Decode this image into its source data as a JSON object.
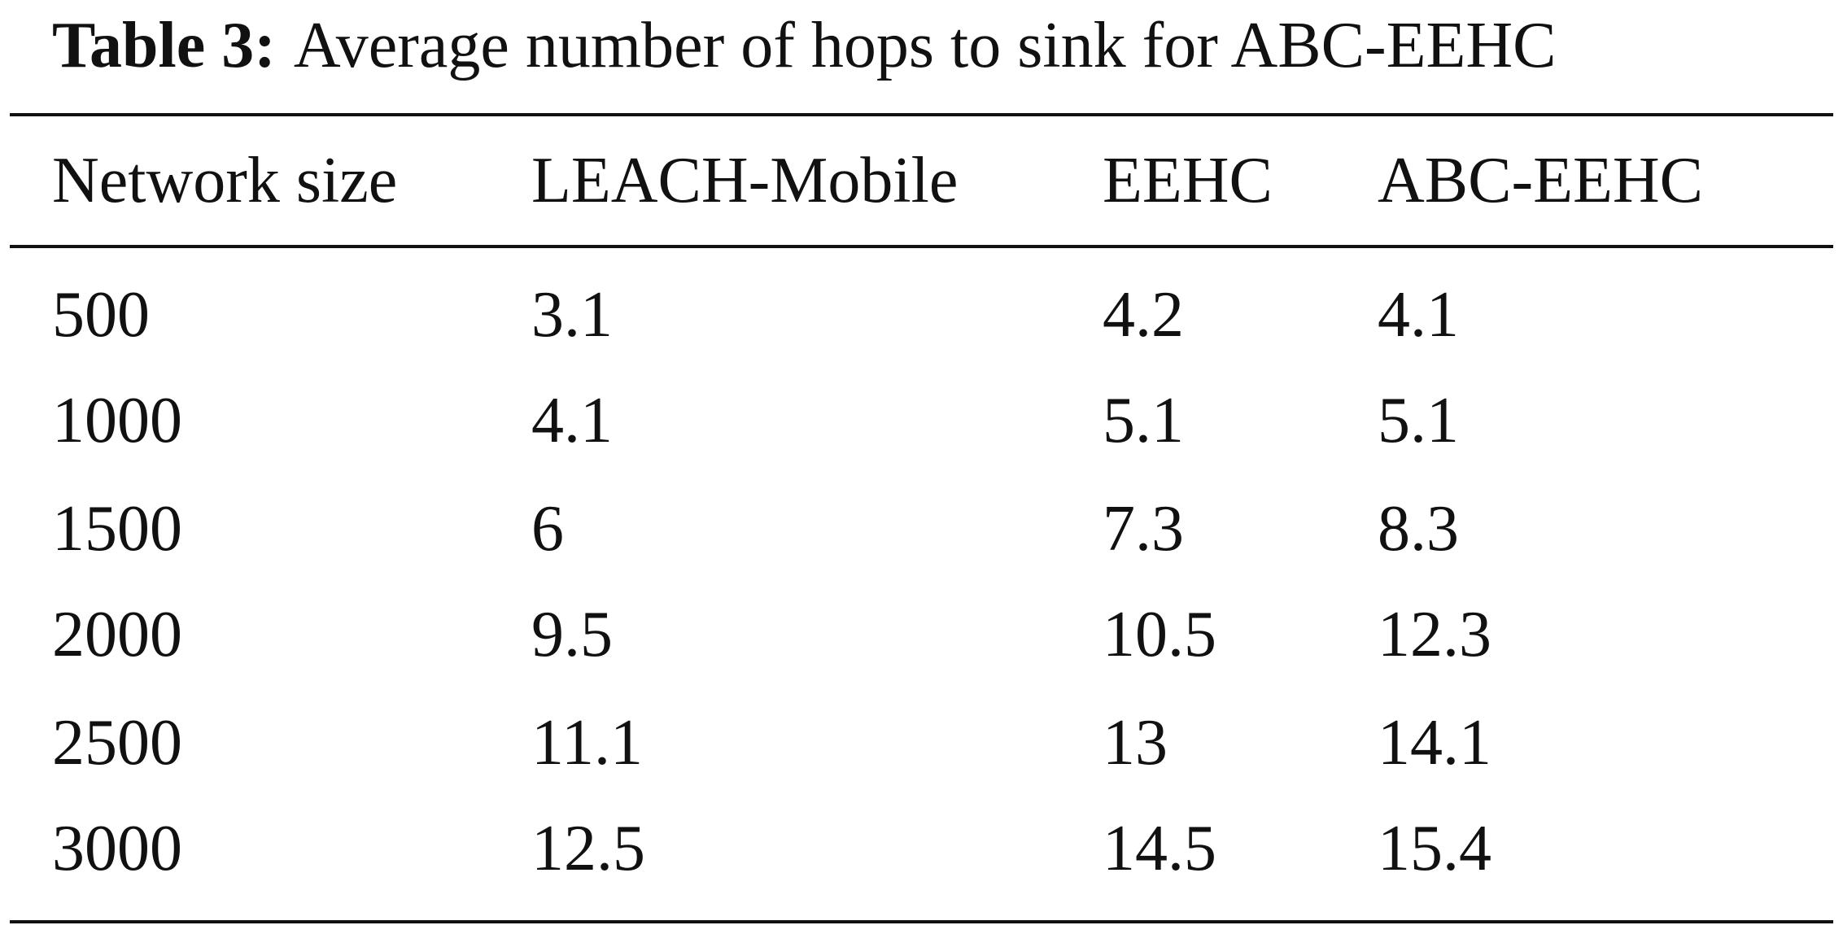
{
  "caption": {
    "label": "Table 3:",
    "title": "Average number of hops to sink for ABC-EEHC"
  },
  "table": {
    "header": [
      "Network size",
      "LEACH-Mobile",
      "EEHC",
      "ABC-EEHC"
    ],
    "rows": [
      [
        "500",
        "3.1",
        "4.2",
        "4.1"
      ],
      [
        "1000",
        "4.1",
        "5.1",
        "5.1"
      ],
      [
        "1500",
        "6",
        "7.3",
        "8.3"
      ],
      [
        "2000",
        "9.5",
        "10.5",
        "12.3"
      ],
      [
        "2500",
        "11.1",
        "13",
        "14.1"
      ],
      [
        "3000",
        "12.5",
        "14.5",
        "15.4"
      ]
    ]
  }
}
